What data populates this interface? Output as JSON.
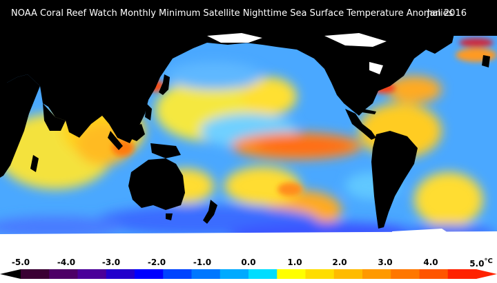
{
  "title": "NOAA Coral Reef Watch Monthly Minimum Satellite Nighttime Sea Surface Temperature Anomalies",
  "date": "Jan 2016",
  "legend": {
    "ticks": [
      "-5.0",
      "-4.0",
      "-3.0",
      "-2.0",
      "-1.0",
      "0.0",
      "1.0",
      "2.0",
      "3.0",
      "4.0",
      "5.0"
    ],
    "unit": "°C",
    "colors": [
      "#3a0033",
      "#4d0066",
      "#4a0099",
      "#2200cc",
      "#0000ff",
      "#0044ff",
      "#0077ff",
      "#00aaff",
      "#00ddff",
      "#ffff00",
      "#ffdd00",
      "#ffbb00",
      "#ff9900",
      "#ff7700",
      "#ff5500",
      "#ff2200"
    ]
  },
  "map": {
    "ocean_color": "#4aa8ff",
    "land_color": "#000000",
    "ice_color": "#ffffff"
  }
}
